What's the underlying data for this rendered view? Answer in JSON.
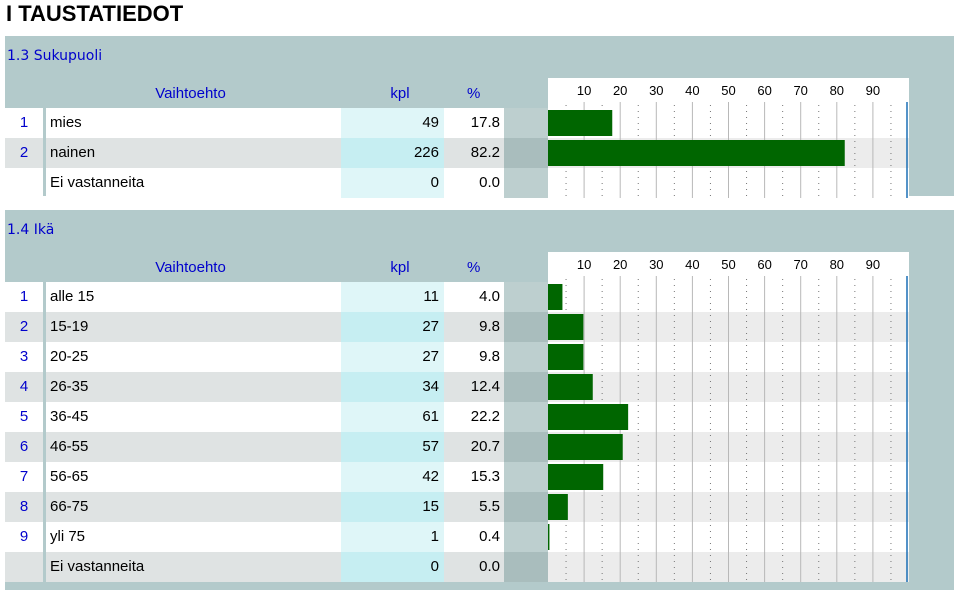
{
  "page_title": "I TAUSTATIEDOT",
  "header": {
    "option": "Vaihtoehto",
    "count": "kpl",
    "percent": "%"
  },
  "colors": {
    "bar": "#006600",
    "panel": "#b3cacb",
    "number_text": "#0000cc",
    "guide_line": "#1a6fb5"
  },
  "chart_data": [
    {
      "type": "bar",
      "title": "1.3 Sukupuoli",
      "ticks": [
        "10",
        "20",
        "30",
        "40",
        "50",
        "60",
        "70",
        "80",
        "90"
      ],
      "xlim": [
        0,
        100
      ],
      "rows": [
        {
          "no": "1",
          "label": "mies",
          "kpl": "49",
          "pct": "17.8"
        },
        {
          "no": "2",
          "label": "nainen",
          "kpl": "226",
          "pct": "82.2"
        },
        {
          "no": "",
          "label": "Ei vastanneita",
          "kpl": "0",
          "pct": "0.0"
        }
      ]
    },
    {
      "type": "bar",
      "title": "1.4 Ikä",
      "ticks": [
        "10",
        "20",
        "30",
        "40",
        "50",
        "60",
        "70",
        "80",
        "90"
      ],
      "xlim": [
        0,
        100
      ],
      "rows": [
        {
          "no": "1",
          "label": "alle 15",
          "kpl": "11",
          "pct": "4.0"
        },
        {
          "no": "2",
          "label": "15-19",
          "kpl": "27",
          "pct": "9.8"
        },
        {
          "no": "3",
          "label": "20-25",
          "kpl": "27",
          "pct": "9.8"
        },
        {
          "no": "4",
          "label": "26-35",
          "kpl": "34",
          "pct": "12.4"
        },
        {
          "no": "5",
          "label": "36-45",
          "kpl": "61",
          "pct": "22.2"
        },
        {
          "no": "6",
          "label": "46-55",
          "kpl": "57",
          "pct": "20.7"
        },
        {
          "no": "7",
          "label": "56-65",
          "kpl": "42",
          "pct": "15.3"
        },
        {
          "no": "8",
          "label": "66-75",
          "kpl": "15",
          "pct": "5.5"
        },
        {
          "no": "9",
          "label": "yli 75",
          "kpl": "1",
          "pct": "0.4"
        },
        {
          "no": "",
          "label": "Ei vastanneita",
          "kpl": "0",
          "pct": "0.0"
        }
      ]
    }
  ]
}
